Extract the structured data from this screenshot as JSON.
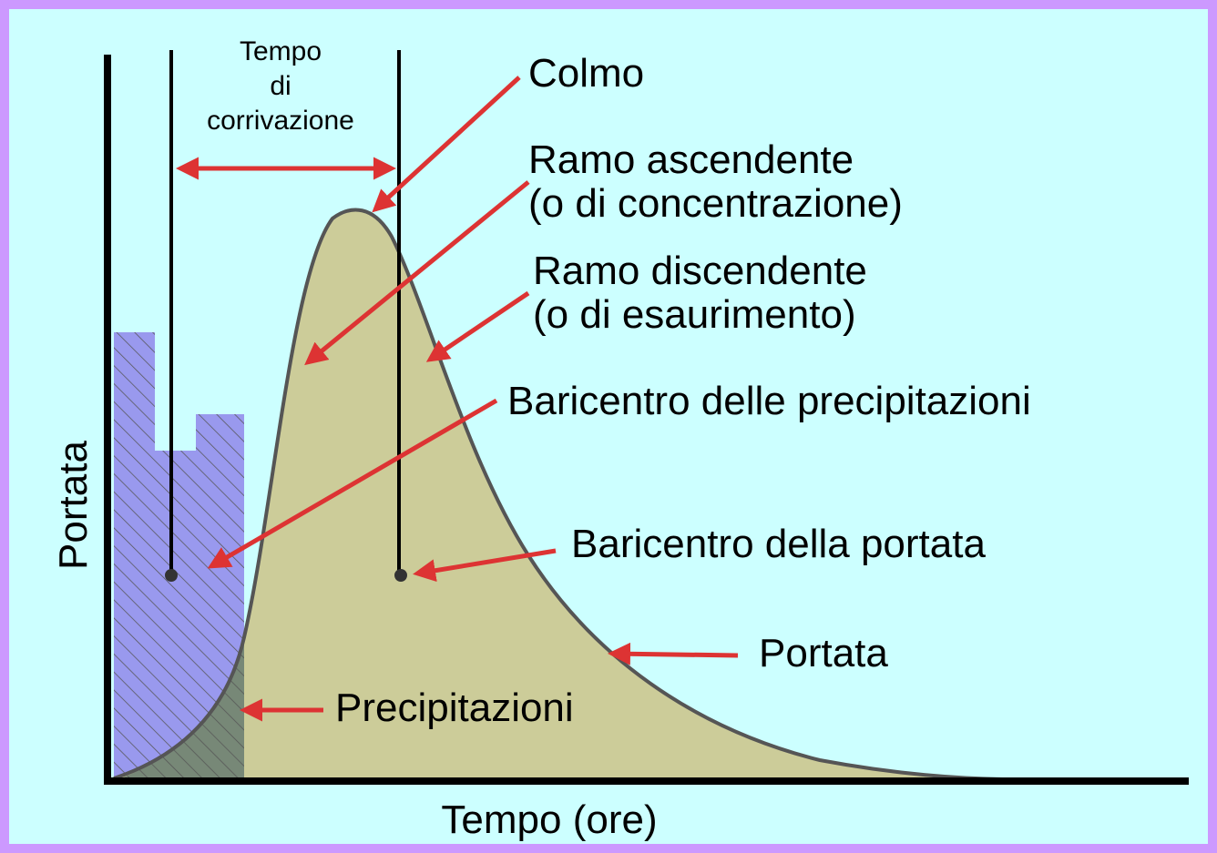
{
  "diagram": {
    "y_axis_label": "Portata",
    "x_axis_label": "Tempo (ore)",
    "tempo_di_corrivazione": [
      "Tempo",
      "di",
      "corrivazione"
    ],
    "labels": {
      "colmo": "Colmo",
      "ramo_ascendente": [
        "Ramo ascendente",
        "(o di concentrazione)"
      ],
      "ramo_discendente": [
        "Ramo discendente",
        "(o di esaurimento)"
      ],
      "baricentro_precipitazioni": "Baricentro delle precipitazioni",
      "baricentro_portata": "Baricentro della portata",
      "portata": "Portata",
      "precipitazioni": "Precipitazioni"
    }
  }
}
